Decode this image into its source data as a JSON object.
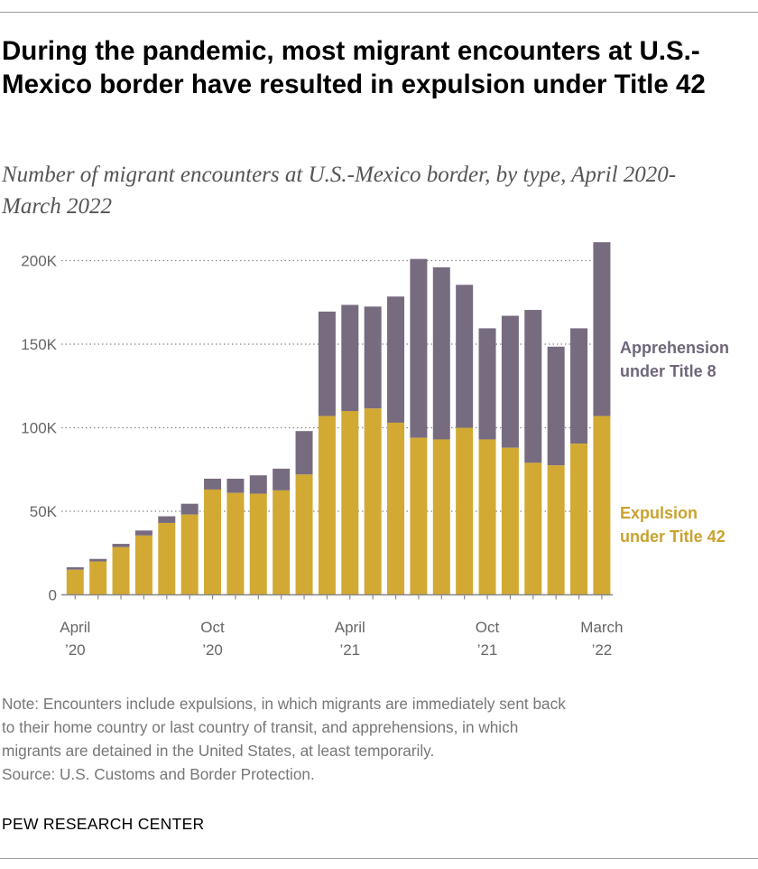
{
  "header": {
    "title": "During the pandemic, most migrant encounters at U.S.-Mexico border have resulted in expulsion under Title 42",
    "subtitle": "Number of migrant encounters at U.S.-Mexico border, by type, April 2020-March 2022"
  },
  "colors": {
    "expulsion": "#d2a933",
    "apprehension": "#776b80",
    "expulsion_label": "#c9a230",
    "apprehension_label": "#6f6679",
    "axis": "#888888",
    "grid": "#888888"
  },
  "chart_data": {
    "type": "bar",
    "stacked": true,
    "title": "Number of migrant encounters at U.S.-Mexico border, by type, April 2020-March 2022",
    "xlabel": "",
    "ylabel": "",
    "ylim": [
      0,
      200000
    ],
    "y_ticks": [
      0,
      50000,
      100000,
      150000,
      200000
    ],
    "y_tick_labels": [
      "0",
      "50K",
      "100K",
      "150K",
      "200K"
    ],
    "grid": true,
    "categories": [
      "Apr 2020",
      "May 2020",
      "Jun 2020",
      "Jul 2020",
      "Aug 2020",
      "Sep 2020",
      "Oct 2020",
      "Nov 2020",
      "Dec 2020",
      "Jan 2021",
      "Feb 2021",
      "Mar 2021",
      "Apr 2021",
      "May 2021",
      "Jun 2021",
      "Jul 2021",
      "Aug 2021",
      "Sep 2021",
      "Oct 2021",
      "Nov 2021",
      "Dec 2021",
      "Jan 2022",
      "Feb 2022",
      "Mar 2022"
    ],
    "x_tick_labels": [
      {
        "index": 0,
        "lines": [
          "April",
          "’20"
        ]
      },
      {
        "index": 6,
        "lines": [
          "Oct",
          "’20"
        ]
      },
      {
        "index": 12,
        "lines": [
          "April",
          "’21"
        ]
      },
      {
        "index": 18,
        "lines": [
          "Oct",
          "’21"
        ]
      },
      {
        "index": 23,
        "lines": [
          "March",
          "’22"
        ]
      }
    ],
    "series": [
      {
        "name": "Expulsion under Title 42",
        "key": "expulsion",
        "values": [
          15000,
          20000,
          28500,
          35500,
          43000,
          48000,
          63000,
          61000,
          60500,
          62500,
          72000,
          107000,
          110000,
          111500,
          103000,
          94000,
          93000,
          100000,
          93000,
          88000,
          79000,
          77500,
          90500,
          107000
        ]
      },
      {
        "name": "Apprehension under Title 8",
        "key": "apprehension",
        "values": [
          1500,
          1500,
          2000,
          3000,
          4000,
          6500,
          6500,
          8500,
          11000,
          13000,
          26000,
          62500,
          63500,
          61000,
          75500,
          107000,
          103000,
          85500,
          66500,
          79000,
          91500,
          71000,
          69000,
          104000
        ]
      }
    ],
    "legend": [
      {
        "key": "apprehension",
        "lines": [
          "Apprehension",
          "under Title 8"
        ]
      },
      {
        "key": "expulsion",
        "lines": [
          "Expulsion",
          "under Title 42"
        ]
      }
    ],
    "legend_placement": "right"
  },
  "note": {
    "lines": [
      "Note: Encounters include expulsions, in which migrants are immediately sent back",
      "to their home country or last country of transit, and apprehensions, in which",
      "migrants are detained in the United States, at least temporarily.",
      "Source: U.S. Customs and Border Protection."
    ]
  },
  "footer": {
    "source_org": "PEW RESEARCH CENTER"
  }
}
